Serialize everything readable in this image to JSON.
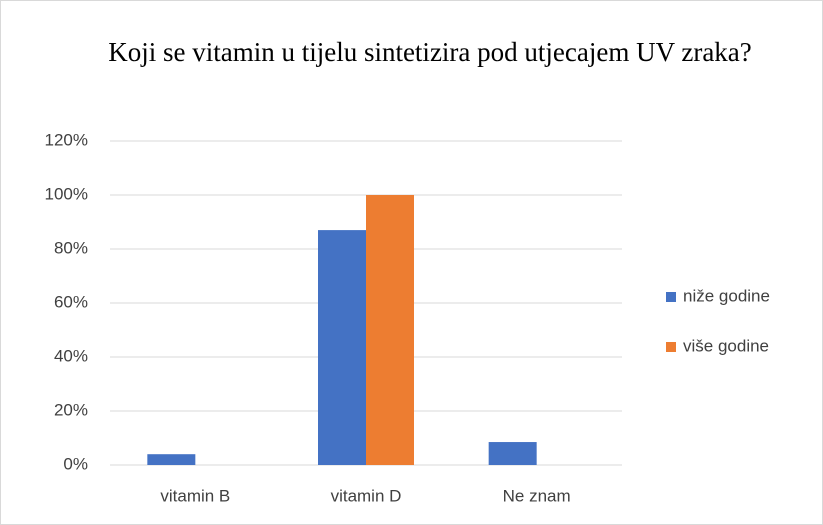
{
  "chart_data": {
    "type": "bar",
    "title": "Koji se vitamin u tijelu sintetizira pod utjecajem UV zraka?",
    "categories": [
      "vitamin B",
      "vitamin D",
      "Ne znam"
    ],
    "series": [
      {
        "name": "niže godine",
        "color": "#4472c4",
        "values": [
          4,
          87,
          8.5
        ]
      },
      {
        "name": "više godine",
        "color": "#ed7d31",
        "values": [
          0,
          100,
          0
        ]
      }
    ],
    "ylim": [
      0,
      120
    ],
    "yticks": [
      {
        "value": 0,
        "label": "0%"
      },
      {
        "value": 20,
        "label": "20%"
      },
      {
        "value": 40,
        "label": "40%"
      },
      {
        "value": 60,
        "label": "60%"
      },
      {
        "value": 80,
        "label": "80%"
      },
      {
        "value": 100,
        "label": "100%"
      },
      {
        "value": 120,
        "label": "120%"
      }
    ],
    "grid": true,
    "legend": "right"
  }
}
